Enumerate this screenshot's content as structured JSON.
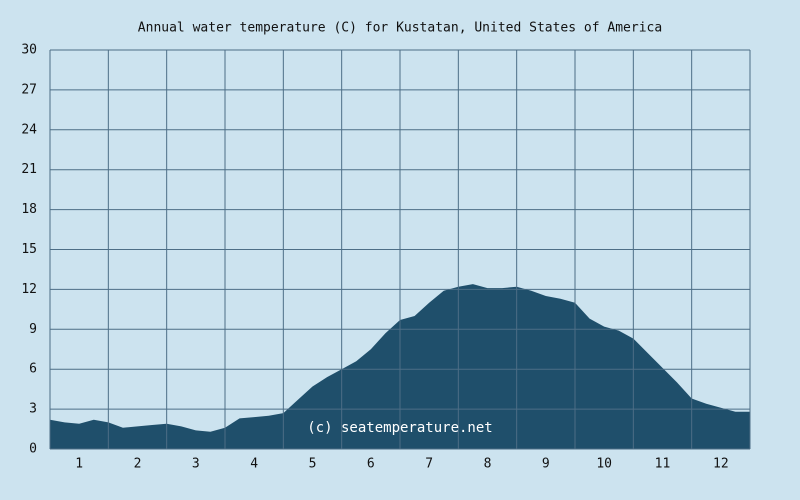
{
  "chart_data": {
    "type": "area",
    "title": "Annual water temperature (C) for Kustatan, United States of America",
    "annotation": "(c) seatemperature.net",
    "x": [
      0,
      0.25,
      0.5,
      0.75,
      1,
      1.25,
      1.5,
      1.75,
      2,
      2.25,
      2.5,
      2.75,
      3,
      3.25,
      3.5,
      3.75,
      4,
      4.25,
      4.5,
      4.75,
      5,
      5.25,
      5.5,
      5.75,
      6,
      6.25,
      6.5,
      6.75,
      7,
      7.25,
      7.5,
      7.75,
      8,
      8.25,
      8.5,
      8.75,
      9,
      9.25,
      9.5,
      9.75,
      10,
      10.25,
      10.5,
      10.75,
      11,
      11.25,
      11.5,
      11.75,
      12
    ],
    "values": [
      2.2,
      2.0,
      1.9,
      2.2,
      2.0,
      1.6,
      1.7,
      1.8,
      1.9,
      1.7,
      1.4,
      1.3,
      1.6,
      2.3,
      2.4,
      2.5,
      2.7,
      3.7,
      4.7,
      5.4,
      6.0,
      6.6,
      7.5,
      8.7,
      9.7,
      10.0,
      11.0,
      11.9,
      12.2,
      12.4,
      12.1,
      12.1,
      12.2,
      11.9,
      11.5,
      11.3,
      11.0,
      9.8,
      9.2,
      8.9,
      8.3,
      7.2,
      6.1,
      5.0,
      3.8,
      3.4,
      3.1,
      2.8,
      2.8
    ],
    "color": "#1f4f6b",
    "xlim": [
      0,
      12
    ],
    "xticks": [
      {
        "value": 0.5,
        "label": "1"
      },
      {
        "value": 1.5,
        "label": "2"
      },
      {
        "value": 2.5,
        "label": "3"
      },
      {
        "value": 3.5,
        "label": "4"
      },
      {
        "value": 4.5,
        "label": "5"
      },
      {
        "value": 5.5,
        "label": "6"
      },
      {
        "value": 6.5,
        "label": "7"
      },
      {
        "value": 7.5,
        "label": "8"
      },
      {
        "value": 8.5,
        "label": "9"
      },
      {
        "value": 9.5,
        "label": "10"
      },
      {
        "value": 10.5,
        "label": "11"
      },
      {
        "value": 11.5,
        "label": "12"
      }
    ],
    "x_gridlines": [
      0,
      1,
      2,
      3,
      4,
      5,
      6,
      7,
      8,
      9,
      10,
      11,
      12
    ],
    "ylim": [
      0,
      30
    ],
    "yticks": [
      0,
      3,
      6,
      9,
      12,
      15,
      18,
      21,
      24,
      27,
      30
    ],
    "grid": true
  }
}
